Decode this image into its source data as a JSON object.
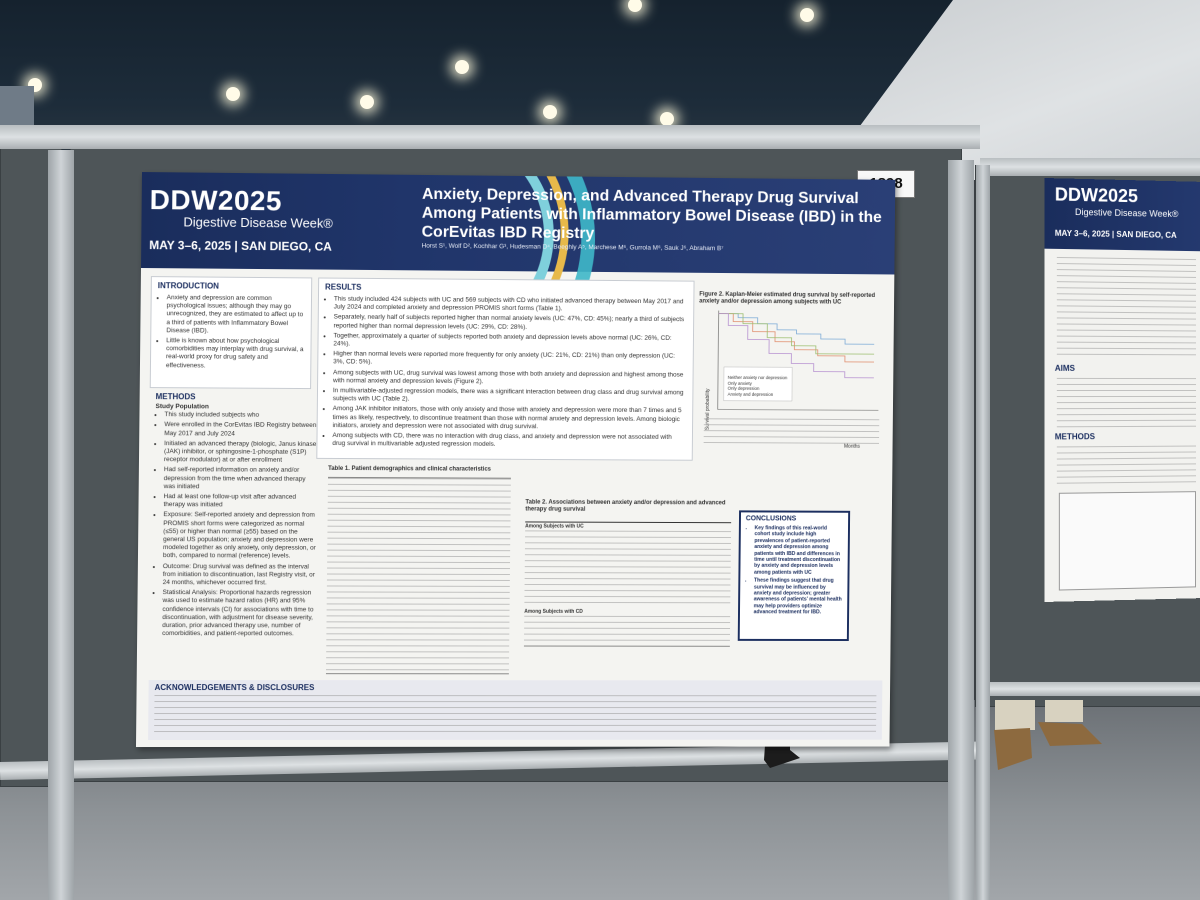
{
  "poster_number": "1898",
  "main_poster": {
    "brand": "DDW2025",
    "brand_subtitle": "Digestive Disease Week®",
    "dates": "MAY 3–6, 2025 | SAN DIEGO, CA",
    "title": "Anxiety, Depression, and Advanced Therapy Drug Survival Among Patients with Inflammatory Bowel Disease (IBD) in the CorEvitas IBD Registry",
    "authors": "Horst S¹, Wolf D², Kochhar G³, Hudesman D⁴, Beeghly A⁵, Marchese M⁶, Gurrola M⁶, Sauk J⁶, Abraham B⁷",
    "sections": {
      "introduction_heading": "INTRODUCTION",
      "introduction_1": "Anxiety and depression are common psychological issues; although they may go unrecognized, they are estimated to affect up to a third of patients with Inflammatory Bowel Disease (IBD).",
      "introduction_2": "Little is known about how psychological comorbidities may interplay with drug survival, a real-world proxy for drug safety and effectiveness.",
      "methods_heading": "METHODS",
      "study_population": "Study Population",
      "methods_1": "This study included subjects who",
      "methods_2": "Were enrolled in the CorEvitas IBD Registry between May 2017 and July 2024",
      "methods_3": "Initiated an advanced therapy (biologic, Janus kinase (JAK) inhibitor, or sphingosine-1-phosphate (S1P) receptor modulator) at or after enrollment",
      "methods_4": "Had self-reported information on anxiety and/or depression from the time when advanced therapy was initiated",
      "methods_5": "Had at least one follow-up visit after advanced therapy was initiated",
      "exposure": "Exposure: Self-reported anxiety and depression from PROMIS short forms were categorized as normal (≤55) or higher than normal (≥55) based on the general US population; anxiety and depression were modeled together as only anxiety, only depression, or both, compared to normal (reference) levels.",
      "outcome": "Outcome: Drug survival was defined as the interval from initiation to discontinuation, last Registry visit, or 24 months, whichever occurred first.",
      "stats": "Statistical Analysis: Proportional hazards regression was used to estimate hazard ratios (HR) and 95% confidence intervals (CI) for associations with time to discontinuation, with adjustment for disease severity, duration, prior advanced therapy use, number of comorbidities, and patient-reported outcomes.",
      "results_heading": "RESULTS",
      "results_1": "This study included 424 subjects with UC and 569 subjects with CD who initiated advanced therapy between May 2017 and July 2024 and completed anxiety and depression PROMIS short forms (Table 1).",
      "results_2": "Separately, nearly half of subjects reported higher than normal anxiety levels (UC: 47%, CD: 45%); nearly a third of subjects reported higher than normal depression levels (UC: 29%, CD: 28%).",
      "results_3": "Together, approximately a quarter of subjects reported both anxiety and depression levels above normal (UC: 26%, CD: 24%).",
      "results_4": "Higher than normal levels were reported more frequently for only anxiety (UC: 21%, CD: 21%) than only depression (UC: 3%, CD: 5%).",
      "results_5": "Among subjects with UC, drug survival was lowest among those with both anxiety and depression and highest among those with normal anxiety and depression levels (Figure 2).",
      "results_6": "In multivariable-adjusted regression models, there was a significant interaction between drug class and drug survival among subjects with UC (Table 2).",
      "results_7": "Among JAK inhibitor initiators, those with only anxiety and those with anxiety and depression were more than 7 times and 5 times as likely, respectively, to discontinue treatment than those with normal anxiety and depression levels. Among biologic initiators, anxiety and depression were not associated with drug survival.",
      "results_8": "Among subjects with CD, there was no interaction with drug class, and anxiety and depression were not associated with drug survival in multivariable adjusted regression models.",
      "figure2_caption": "Figure 2. Kaplan-Meier estimated drug survival by self-reported anxiety and/or depression among subjects with UC",
      "km_ylabel": "Survival probability",
      "km_xlabel": "Months",
      "km_legend": [
        "Neither anxiety nor depression",
        "Only anxiety",
        "Only depression",
        "Anxiety and depression"
      ],
      "table1_caption": "Table 1. Patient demographics and clinical characteristics",
      "table2_caption": "Table 2. Associations between anxiety and/or depression and advanced therapy drug survival",
      "table2_sub_uc": "Among Subjects with UC",
      "table2_sub_cd": "Among Subjects with CD",
      "conclusions_heading": "CONCLUSIONS",
      "conclusions_1": "Key findings of this real-world cohort study include high prevalences of patient-reported anxiety and depression among patients with IBD and differences in time until treatment discontinuation by anxiety and depression levels among patients with UC",
      "conclusions_2": "These findings suggest that drug survival may be influenced by anxiety and depression; greater awareness of patients' mental health may help providers optimize advanced treatment for IBD.",
      "ack_heading": "ACKNOWLEDGEMENTS & DISCLOSURES"
    }
  },
  "right_poster": {
    "brand": "DDW2025",
    "brand_subtitle": "Digestive Disease Week®",
    "dates": "MAY 3–6, 2025 | SAN DIEGO, CA",
    "aims_heading": "AIMS",
    "methods_heading": "METHODS"
  },
  "colors": {
    "header_navy": "#1c2f60",
    "accent_teal": "#3fb8c9",
    "accent_gold": "#e7b94a",
    "board_gray": "#4e5558"
  }
}
